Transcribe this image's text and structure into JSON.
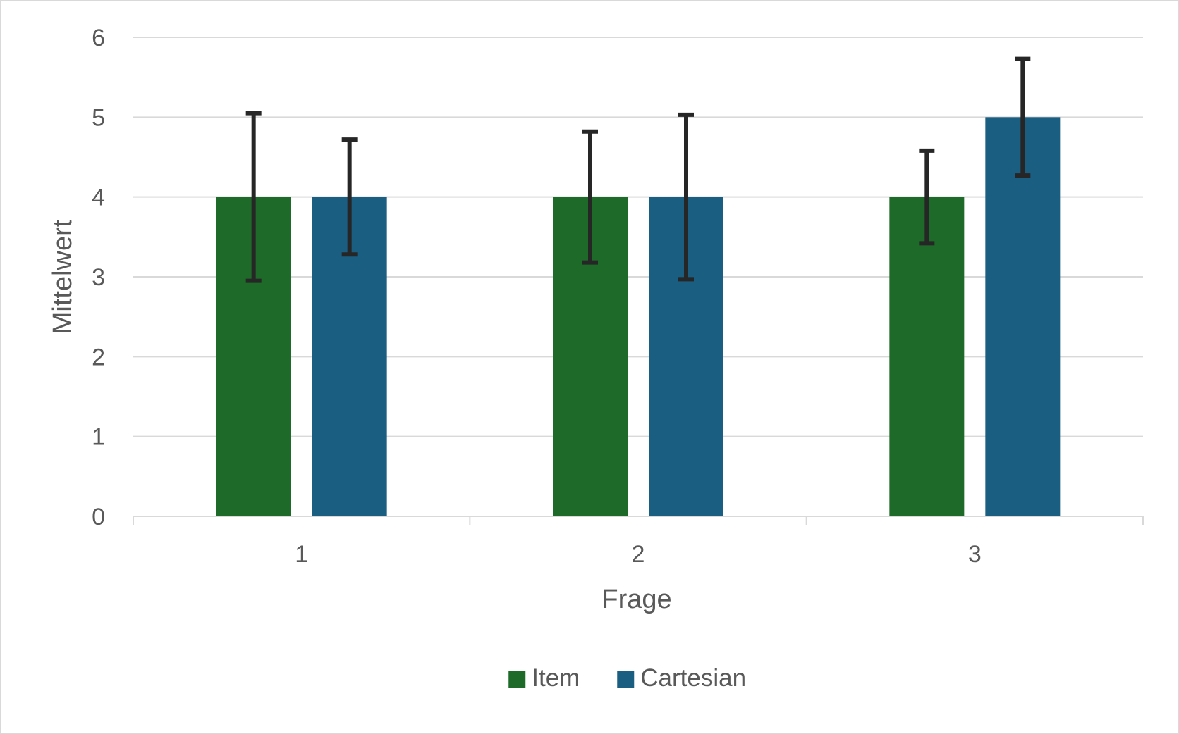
{
  "chart_data": {
    "type": "bar",
    "categories": [
      "1",
      "2",
      "3"
    ],
    "series": [
      {
        "name": "Item",
        "color": "#1e6b29",
        "values": [
          4,
          4,
          4
        ],
        "error_low": [
          2.95,
          3.18,
          3.42
        ],
        "error_high": [
          5.05,
          4.82,
          4.58
        ]
      },
      {
        "name": "Cartesian",
        "color": "#1a5e82",
        "values": [
          4,
          4,
          5
        ],
        "error_low": [
          3.28,
          2.97,
          4.27
        ],
        "error_high": [
          4.72,
          5.03,
          5.73
        ]
      }
    ],
    "title": "",
    "xlabel": "Frage",
    "ylabel": "Mittelwert",
    "ylim": [
      0,
      6
    ],
    "yticks": [
      "0",
      "1",
      "2",
      "3",
      "4",
      "5",
      "6"
    ],
    "grid": true,
    "legend_position": "bottom"
  }
}
